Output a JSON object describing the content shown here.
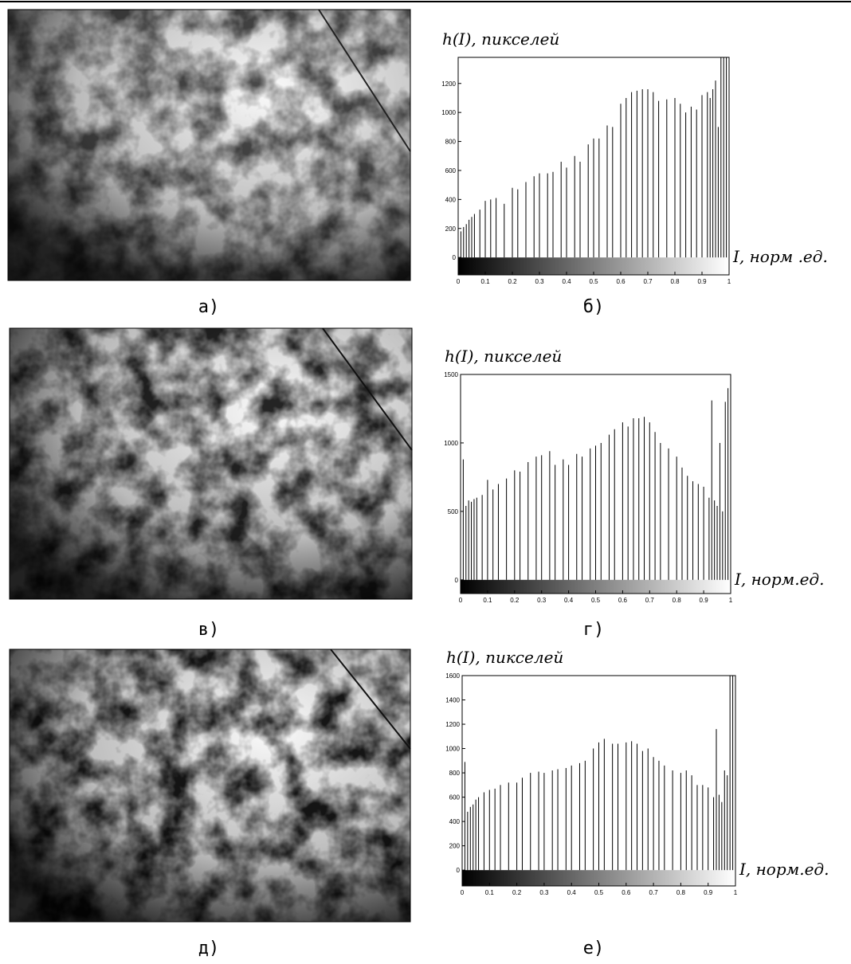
{
  "image_captions": [
    "а)",
    "в)",
    "д)"
  ],
  "chart_data": [
    {
      "type": "bar",
      "caption": "б)",
      "ylabel": "h(I), пикселей",
      "xlabel": "I, норм .ед.",
      "color": "#000000",
      "x": [
        0,
        0.01,
        0.02,
        0.03,
        0.04,
        0.05,
        0.06,
        0.08,
        0.1,
        0.12,
        0.14,
        0.17,
        0.2,
        0.22,
        0.25,
        0.28,
        0.3,
        0.33,
        0.35,
        0.38,
        0.4,
        0.43,
        0.45,
        0.48,
        0.5,
        0.52,
        0.55,
        0.57,
        0.6,
        0.62,
        0.64,
        0.66,
        0.68,
        0.7,
        0.72,
        0.74,
        0.77,
        0.8,
        0.82,
        0.84,
        0.86,
        0.88,
        0.9,
        0.92,
        0.93,
        0.94,
        0.95,
        0.96,
        0.97,
        0.98,
        0.99,
        1
      ],
      "values": [
        400,
        180,
        210,
        230,
        260,
        280,
        300,
        330,
        390,
        400,
        410,
        370,
        480,
        470,
        520,
        560,
        580,
        580,
        590,
        660,
        620,
        700,
        660,
        780,
        820,
        820,
        910,
        900,
        1060,
        1100,
        1140,
        1150,
        1160,
        1160,
        1140,
        1080,
        1090,
        1100,
        1060,
        1000,
        1040,
        1020,
        1120,
        1140,
        1100,
        1160,
        1220,
        900,
        1380,
        1380,
        1380,
        800
      ],
      "xlim": [
        0,
        1
      ],
      "xticks": [
        0,
        0.1,
        0.2,
        0.3,
        0.4,
        0.5,
        0.6,
        0.7,
        0.8,
        0.9,
        1
      ],
      "ylim": [
        -120,
        1380
      ],
      "yticks": [
        0,
        200,
        400,
        600,
        800,
        1000,
        1200
      ]
    },
    {
      "type": "bar",
      "caption": "г)",
      "ylabel": "h(I), пикселей",
      "xlabel": "I, норм.ед.",
      "color": "#000000",
      "x": [
        0,
        0.01,
        0.02,
        0.03,
        0.04,
        0.05,
        0.06,
        0.08,
        0.1,
        0.12,
        0.14,
        0.17,
        0.2,
        0.22,
        0.25,
        0.28,
        0.3,
        0.33,
        0.35,
        0.38,
        0.4,
        0.43,
        0.45,
        0.48,
        0.5,
        0.52,
        0.55,
        0.57,
        0.6,
        0.62,
        0.64,
        0.66,
        0.68,
        0.7,
        0.72,
        0.74,
        0.77,
        0.8,
        0.82,
        0.84,
        0.86,
        0.88,
        0.9,
        0.92,
        0.93,
        0.94,
        0.95,
        0.96,
        0.97,
        0.98,
        0.99,
        1
      ],
      "values": [
        860,
        880,
        540,
        580,
        570,
        590,
        600,
        620,
        730,
        660,
        700,
        740,
        800,
        790,
        860,
        900,
        910,
        940,
        840,
        880,
        840,
        920,
        900,
        960,
        980,
        1000,
        1060,
        1100,
        1150,
        1120,
        1180,
        1180,
        1190,
        1150,
        1080,
        1000,
        960,
        900,
        820,
        760,
        720,
        700,
        680,
        600,
        1310,
        580,
        540,
        1000,
        500,
        1300,
        1400,
        1480
      ],
      "xlim": [
        0,
        1
      ],
      "xticks": [
        0,
        0.1,
        0.2,
        0.3,
        0.4,
        0.5,
        0.6,
        0.7,
        0.8,
        0.9,
        1
      ],
      "ylim": [
        -100,
        1500
      ],
      "yticks": [
        0,
        500,
        1000,
        1500
      ]
    },
    {
      "type": "bar",
      "caption": "е)",
      "ylabel": "h(I), пикселей",
      "xlabel": "I, норм.ед.",
      "color": "#000000",
      "x": [
        0,
        0.01,
        0.02,
        0.03,
        0.04,
        0.05,
        0.06,
        0.08,
        0.1,
        0.12,
        0.14,
        0.17,
        0.2,
        0.22,
        0.25,
        0.28,
        0.3,
        0.33,
        0.35,
        0.38,
        0.4,
        0.43,
        0.45,
        0.48,
        0.5,
        0.52,
        0.55,
        0.57,
        0.6,
        0.62,
        0.64,
        0.66,
        0.68,
        0.7,
        0.72,
        0.74,
        0.77,
        0.8,
        0.82,
        0.84,
        0.86,
        0.88,
        0.9,
        0.92,
        0.93,
        0.94,
        0.95,
        0.96,
        0.97,
        0.98,
        0.99,
        1
      ],
      "values": [
        760,
        890,
        480,
        520,
        540,
        580,
        600,
        640,
        660,
        670,
        700,
        720,
        720,
        760,
        800,
        810,
        800,
        820,
        830,
        840,
        860,
        880,
        900,
        1000,
        1050,
        1080,
        1040,
        1040,
        1050,
        1060,
        1040,
        980,
        1000,
        930,
        900,
        860,
        820,
        800,
        820,
        780,
        700,
        700,
        680,
        600,
        1160,
        620,
        560,
        820,
        780,
        1600,
        1600,
        1600
      ],
      "xlim": [
        0,
        1
      ],
      "xticks": [
        0,
        0.1,
        0.2,
        0.3,
        0.4,
        0.5,
        0.6,
        0.7,
        0.8,
        0.9,
        1
      ],
      "ylim": [
        -130,
        1600
      ],
      "yticks": [
        0,
        200,
        400,
        600,
        800,
        1000,
        1200,
        1400,
        1600
      ]
    }
  ]
}
